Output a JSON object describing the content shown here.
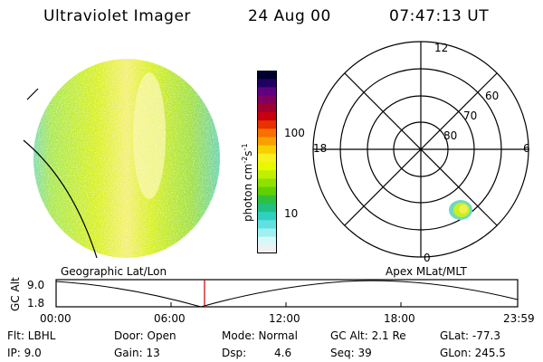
{
  "header": {
    "instrument": "Ultraviolet Imager",
    "date": "24 Aug 00",
    "time": "07:47:13 UT"
  },
  "colorbar": {
    "unit_label": "photon cm",
    "unit_exp1": "-2",
    "unit_mid": "s",
    "unit_exp2": "-1",
    "ticks": [
      "100",
      "10"
    ],
    "colors": [
      "#000030",
      "#200060",
      "#600080",
      "#800060",
      "#a00030",
      "#c80010",
      "#e83000",
      "#f87000",
      "#f8a000",
      "#f8d000",
      "#f8f020",
      "#e8f800",
      "#c0f000",
      "#90e000",
      "#60d000",
      "#30c040",
      "#20c080",
      "#30d0c0",
      "#60e0e0",
      "#a0f0f0",
      "#d8f8f8",
      "#f0f0f0"
    ]
  },
  "polar": {
    "mlt_labels": {
      "top": "12",
      "left": "18",
      "right": "6",
      "bottom": "0"
    },
    "lat_labels": [
      "60",
      "70",
      "80"
    ]
  },
  "timeline": {
    "left_label": "Geographic Lat/Lon",
    "right_label": "Apex MLat/MLT",
    "axis_name": "GC Alt",
    "y_top": "9.0",
    "y_bottom": "1.8",
    "x_ticks": [
      "00:00",
      "06:00",
      "12:00",
      "18:00",
      "23:59"
    ],
    "marker_color": "#c00000"
  },
  "info": {
    "flt": "Flt:  LBHL",
    "ip": "IP:  9.0",
    "door": "Door:  Open",
    "gain": "Gain:  13",
    "mode": "Mode:  Normal",
    "dsp_label": "Dsp:",
    "dsp_value": "4.6",
    "gcalt": "GC Alt:  2.1 Re",
    "seq": "Seq:  39",
    "glat": "GLat:  -77.3",
    "glon": "GLon:  245.5"
  }
}
